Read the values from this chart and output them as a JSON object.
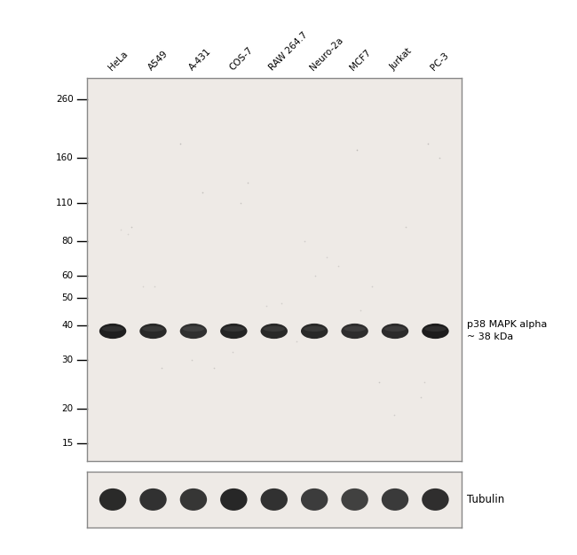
{
  "sample_labels": [
    "HeLa",
    "A549",
    "A-431",
    "COS-7",
    "RAW 264.7",
    "Neuro-2a",
    "MCF7",
    "Jurkat",
    "PC-3"
  ],
  "mw_markers": [
    260,
    160,
    110,
    80,
    60,
    50,
    40,
    30,
    20,
    15
  ],
  "annotation_text": "p38 MAPK alpha\n~ 38 kDa",
  "tubulin_label": "Tubulin",
  "bg_color": "#f0eeec",
  "blot_bg": "#eeeae6",
  "band_color": "#1c1c1c",
  "border_color": "#888888",
  "fig_width": 6.5,
  "fig_height": 6.26,
  "main_band_mw": 38,
  "band_intensities": [
    0.92,
    0.88,
    0.85,
    0.9,
    0.88,
    0.88,
    0.86,
    0.87,
    0.93
  ],
  "tub_intensities": [
    0.9,
    0.87,
    0.85,
    0.91,
    0.87,
    0.82,
    0.8,
    0.83,
    0.88
  ],
  "spots_x": [
    1.2,
    2.5,
    3.1,
    5.8,
    7.2,
    8.5,
    1.8,
    4.3,
    6.7,
    9.1,
    2.0,
    3.9,
    5.2,
    7.8,
    8.9,
    0.9,
    4.8,
    6.1,
    9.4,
    1.5,
    3.4,
    5.6,
    7.3,
    8.2,
    2.8,
    4.1,
    6.4,
    9.0,
    1.1,
    7.6
  ],
  "spots_mw": [
    90,
    180,
    120,
    80,
    170,
    90,
    55,
    130,
    65,
    180,
    28,
    32,
    48,
    25,
    22,
    88,
    47,
    60,
    160,
    55,
    28,
    35,
    45,
    19,
    30,
    110,
    70,
    25,
    85,
    55
  ],
  "spots_alpha": [
    0.25,
    0.3,
    0.28,
    0.2,
    0.32,
    0.22,
    0.18,
    0.26,
    0.19,
    0.29,
    0.22,
    0.2,
    0.18,
    0.24,
    0.21,
    0.15,
    0.17,
    0.2,
    0.25,
    0.16,
    0.22,
    0.19,
    0.18,
    0.2,
    0.21,
    0.23,
    0.17,
    0.19,
    0.16,
    0.2
  ]
}
